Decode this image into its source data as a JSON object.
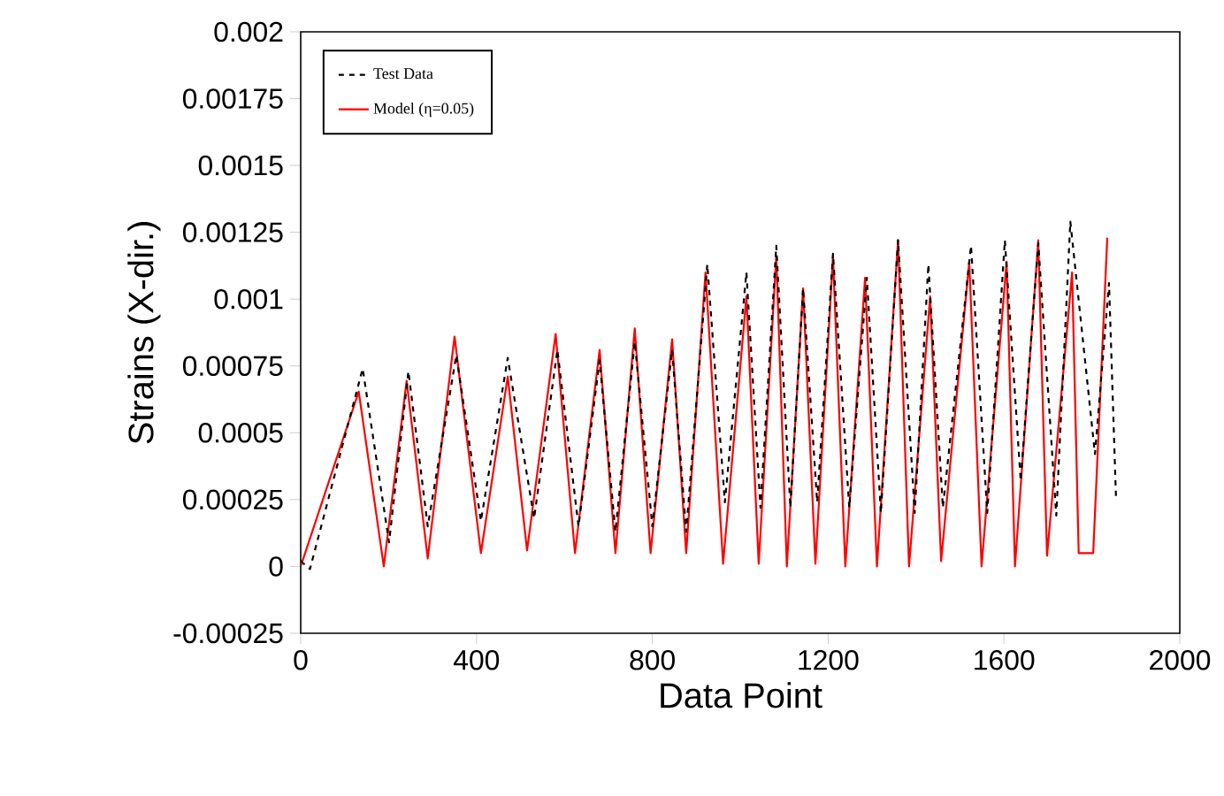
{
  "chart_data": {
    "type": "line",
    "xlabel": "Data Point",
    "ylabel": "Strains (X-dir.)",
    "xlim": [
      0,
      2000
    ],
    "xticks": [
      0,
      400,
      800,
      1200,
      1600,
      2000
    ],
    "ylim": [
      -0.00025,
      0.002
    ],
    "yticks": [
      -0.00025,
      0,
      0.00025,
      0.0005,
      0.00075,
      0.001,
      0.00125,
      0.0015,
      0.00175,
      0.002
    ],
    "legend": "top left",
    "series": [
      {
        "name": "Test Data",
        "color": "#000000",
        "line_style": "dashed",
        "x": [
          0,
          21,
          141,
          201,
          245,
          289,
          354,
          410,
          471,
          531,
          584,
          632,
          680,
          716,
          760,
          800,
          845,
          877,
          925,
          965,
          1014,
          1046,
          1082,
          1114,
          1143,
          1175,
          1211,
          1248,
          1288,
          1320,
          1359,
          1397,
          1428,
          1461,
          1525,
          1562,
          1602,
          1638,
          1678,
          1719,
          1751,
          1807,
          1839,
          1855
        ],
        "values": [
          2e-05,
          -1e-05,
          0.00074,
          9e-05,
          0.00073,
          0.00015,
          0.00079,
          0.00017,
          0.00078,
          0.00018,
          0.00081,
          0.00015,
          0.00077,
          0.00013,
          0.00084,
          0.00015,
          0.00081,
          0.00013,
          0.00113,
          0.00024,
          0.0011,
          0.00022,
          0.0012,
          0.00022,
          0.00104,
          0.00024,
          0.00117,
          0.00022,
          0.00108,
          0.0002,
          0.00122,
          0.0002,
          0.00113,
          0.00022,
          0.0012,
          0.0002,
          0.00122,
          0.00032,
          0.00121,
          0.00019,
          0.00129,
          0.00042,
          0.00106,
          0.00025
        ]
      },
      {
        "name": "Model (η=0.05)",
        "color": "#ff0000",
        "line_style": "solid",
        "x": [
          0,
          132,
          189,
          241,
          289,
          350,
          410,
          471,
          515,
          580,
          624,
          680,
          716,
          760,
          796,
          845,
          877,
          921,
          961,
          1014,
          1042,
          1082,
          1106,
          1143,
          1171,
          1211,
          1239,
          1284,
          1311,
          1359,
          1384,
          1432,
          1457,
          1521,
          1549,
          1606,
          1625,
          1678,
          1698,
          1755,
          1770,
          1803,
          1835
        ],
        "values": [
          0,
          0.000654,
          0,
          0.000694,
          3e-05,
          0.00086,
          5e-05,
          0.00071,
          6e-05,
          0.00087,
          5e-05,
          0.00081,
          5e-05,
          0.00089,
          5e-05,
          0.00085,
          5e-05,
          0.0011,
          1e-05,
          0.00101,
          1e-05,
          0.00116,
          0,
          0.00104,
          1e-05,
          0.00116,
          0,
          0.00108,
          0,
          0.00122,
          0,
          0.00101,
          2e-05,
          0.00114,
          0,
          0.00114,
          0,
          0.00122,
          4e-05,
          0.0011,
          5e-05,
          5e-05,
          0.00123
        ]
      }
    ]
  }
}
